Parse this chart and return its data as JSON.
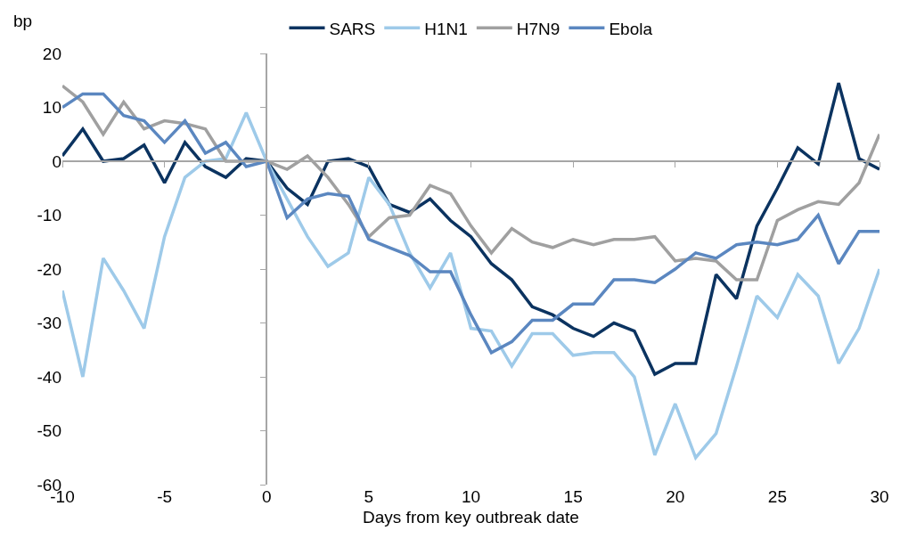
{
  "chart_data": {
    "type": "line",
    "xlabel": "Days from key outbreak date",
    "ylabel": "bp",
    "x": [
      -10,
      -9,
      -8,
      -7,
      -6,
      -5,
      -4,
      -3,
      -2,
      -1,
      0,
      1,
      2,
      3,
      4,
      5,
      6,
      7,
      8,
      9,
      10,
      11,
      12,
      13,
      14,
      15,
      16,
      17,
      18,
      19,
      20,
      21,
      22,
      23,
      24,
      25,
      26,
      27,
      28,
      29,
      30
    ],
    "series": [
      {
        "name": "SARS",
        "color": "#0b3360",
        "values": [
          1,
          6,
          0,
          0.5,
          3,
          -4,
          3.5,
          -1,
          -3,
          0.5,
          0,
          -5,
          -8,
          0,
          0.5,
          -1,
          -8,
          -9.5,
          -7,
          -11,
          -14,
          -19,
          -22,
          -27,
          -28.5,
          -31,
          -32.5,
          -30,
          -31.5,
          -39.5,
          -37.5,
          -37.5,
          -21,
          -25.5,
          -12,
          -5,
          2.5,
          -0.5,
          14.5,
          0.5,
          -1.5
        ]
      },
      {
        "name": "H1N1",
        "color": "#9ecae9",
        "values": [
          -24,
          -40,
          -18,
          -24,
          -31,
          -14,
          -3,
          0,
          0.5,
          9,
          0,
          -7,
          -14,
          -19.5,
          -17,
          -3,
          -8,
          -17,
          -23.5,
          -17,
          -31,
          -31.5,
          -38,
          -32,
          -32,
          -36,
          -35.5,
          -35.5,
          -40,
          -54.5,
          -45,
          -55,
          -50.5,
          -38,
          -25,
          -29,
          -21,
          -25,
          -37.5,
          -31,
          -20
        ]
      },
      {
        "name": "H7N9",
        "color": "#a0a0a0",
        "values": [
          14,
          11,
          5,
          11,
          6,
          7.5,
          7,
          6,
          0,
          0,
          0,
          -1.5,
          1,
          -3,
          -8,
          -14,
          -10.5,
          -10,
          -4.5,
          -6,
          -12,
          -17,
          -12.5,
          -15,
          -16,
          -14.5,
          -15.5,
          -14.5,
          -14.5,
          -14,
          -18.5,
          -18,
          -18.5,
          -22,
          -22,
          -11,
          -9,
          -7.5,
          -8,
          -4,
          5
        ]
      },
      {
        "name": "Ebola",
        "color": "#5b87c0",
        "values": [
          10,
          12.5,
          12.5,
          8.5,
          7.5,
          3.5,
          7.5,
          1.5,
          3.5,
          -1,
          0,
          -10.5,
          -7,
          -6,
          -6.5,
          -14.5,
          -16,
          -17.5,
          -20.5,
          -20.5,
          -28.5,
          -35.5,
          -33.5,
          -29.5,
          -29.5,
          -26.5,
          -26.5,
          -22,
          -22,
          -22.5,
          -20,
          -17,
          -18,
          -15.5,
          -15,
          -15.5,
          -14.5,
          -10,
          -19,
          -13,
          -13
        ]
      }
    ],
    "xlim": [
      -10,
      30
    ],
    "xticks": [
      -10,
      -5,
      0,
      5,
      10,
      15,
      20,
      25,
      30
    ],
    "ylim": [
      -60,
      20
    ],
    "yticks": [
      -60,
      -50,
      -40,
      -30,
      -20,
      -10,
      0,
      10,
      20
    ],
    "legend": "top",
    "marker": "none",
    "line_style": "solid"
  }
}
